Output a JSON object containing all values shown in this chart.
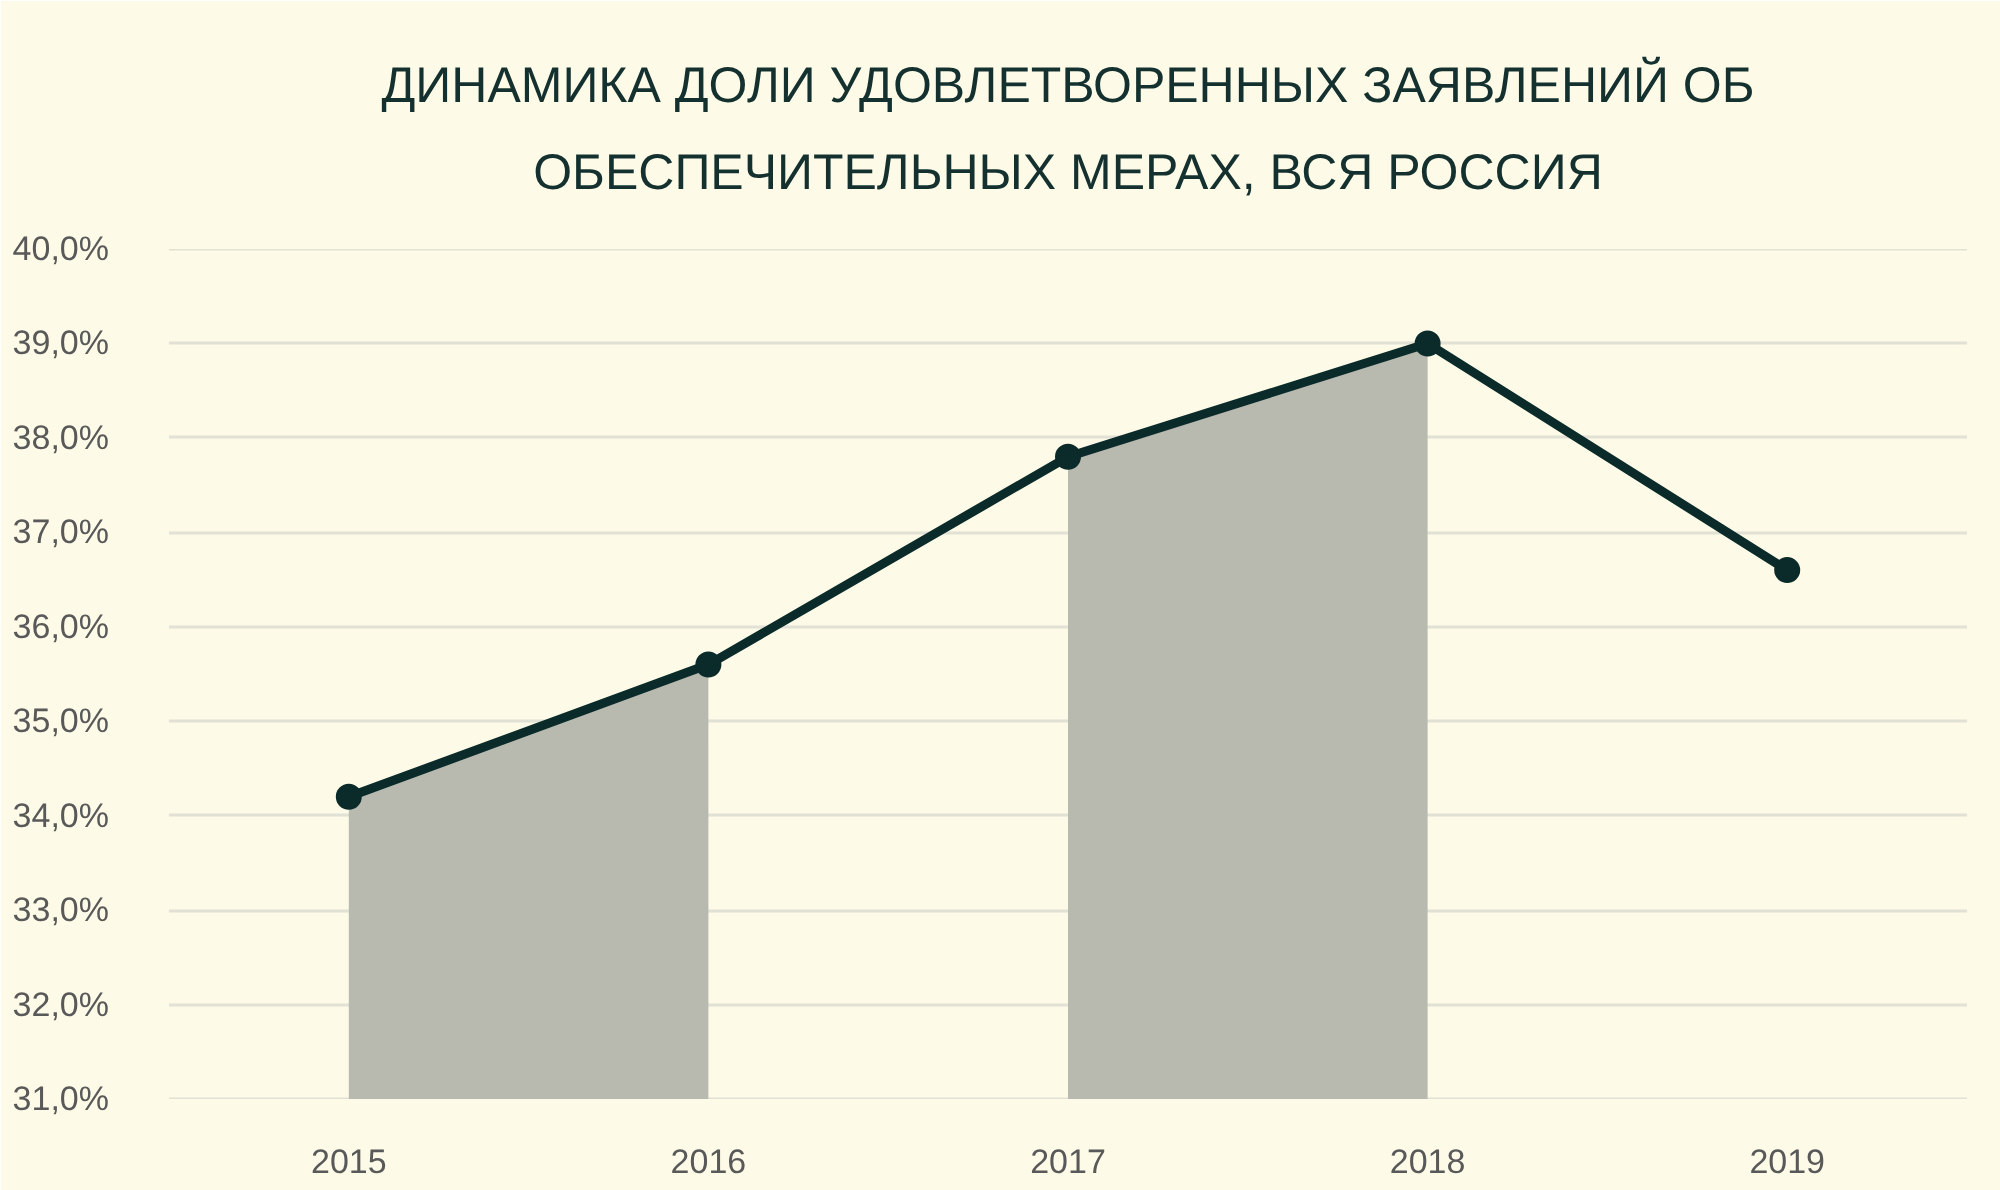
{
  "chart_data": {
    "type": "line",
    "title": "ДИНАМИКА ДОЛИ УДОВЛЕТВОРЕННЫХ ЗАЯВЛЕНИЙ ОБ\nОБЕСПЕЧИТЕЛЬНЫХ МЕРАХ, ВСЯ РОССИЯ",
    "x": [
      2015,
      2016,
      2017,
      2018,
      2019
    ],
    "series": [
      {
        "type": "area",
        "color": "#b8bab0",
        "x": [
          2015,
          2016
        ],
        "values": [
          34.2,
          35.6
        ]
      },
      {
        "type": "area",
        "color": "#b8bab0",
        "x": [
          2017,
          2018
        ],
        "values": [
          37.8,
          39.0
        ]
      },
      {
        "color": "#0b2b2b",
        "values": [
          34.2,
          35.6,
          37.8,
          39.0,
          36.6
        ],
        "marker": "circle",
        "line_style": "solid"
      }
    ],
    "xlim": [
      2014.5,
      2019.5
    ],
    "xticks": [
      2015,
      2016,
      2017,
      2018,
      2019
    ],
    "ylim": [
      31,
      40
    ],
    "yticks": [
      {
        "value": 31,
        "label": "31,0%"
      },
      {
        "value": 32,
        "label": "32,0%"
      },
      {
        "value": 33,
        "label": "33,0%"
      },
      {
        "value": 34,
        "label": "34,0%"
      },
      {
        "value": 35,
        "label": "35,0%"
      },
      {
        "value": 36,
        "label": "36,0%"
      },
      {
        "value": 37,
        "label": "37,0%"
      },
      {
        "value": 38,
        "label": "38,0%"
      },
      {
        "value": 39,
        "label": "39,0%"
      },
      {
        "value": 40,
        "label": "40,0%"
      }
    ],
    "grid": "y"
  }
}
